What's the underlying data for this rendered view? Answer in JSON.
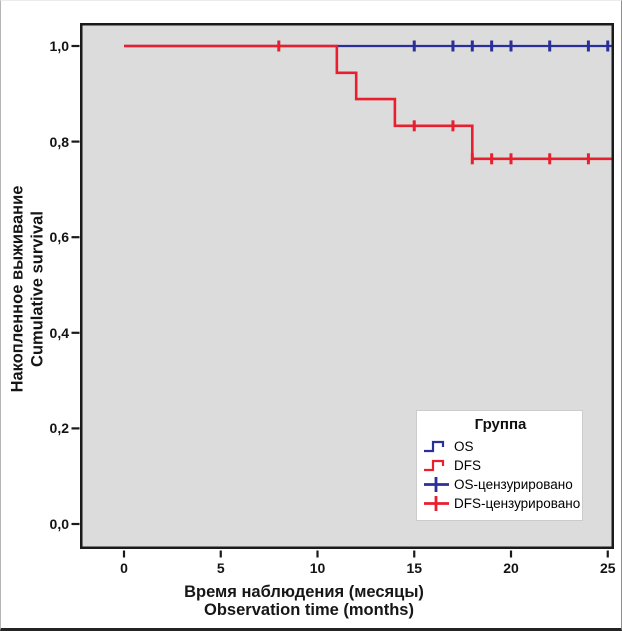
{
  "figure": {
    "y_axis_title_line1": "Накопленное выживание",
    "y_axis_title_line2": "Cumulative survival",
    "x_axis_title_line1": "Время наблюдения (месяцы)",
    "x_axis_title_line2": "Observation time (months)"
  },
  "legend": {
    "title": "Группа",
    "entries": [
      {
        "label": "OS",
        "symbol": "step",
        "color": "#2a2f99"
      },
      {
        "label": "DFS",
        "symbol": "step",
        "color": "#e71f2e"
      },
      {
        "label": "OS-цензурировано",
        "symbol": "plus",
        "color": "#2a2f99"
      },
      {
        "label": "DFS-цензурировано",
        "symbol": "plus",
        "color": "#e71f2e"
      }
    ]
  },
  "colors": {
    "plot_background": "#dcdcdc",
    "frame": "#1a1a1a",
    "os_blue": "#2a2f99",
    "dfs_red": "#e71f2e",
    "page_background": "#ffffff"
  },
  "chart_data": {
    "type": "line",
    "chart_kind": "kaplan_meier_step",
    "title": "",
    "xlabel_ru": "Время наблюдения (месяцы)",
    "xlabel_en": "Observation time (months)",
    "ylabel_ru": "Накопленное выживание",
    "ylabel_en": "Cumulative survival",
    "x_tick_values": [
      0,
      5,
      10,
      15,
      20,
      25
    ],
    "x_tick_labels": [
      "0",
      "5",
      "10",
      "15",
      "20",
      "25"
    ],
    "y_tick_values": [
      0.0,
      0.2,
      0.4,
      0.6,
      0.8,
      1.0
    ],
    "y_tick_labels": [
      "0,0",
      "0,2",
      "0,4",
      "0,6",
      "0,8",
      "1,0"
    ],
    "xlim": [
      -2.2,
      25.3
    ],
    "ylim": [
      -0.052,
      1.048
    ],
    "grid": false,
    "legend_position": "lower-right",
    "series": [
      {
        "name": "OS",
        "color": "#2a2f99",
        "line_width": 2.2,
        "step_points": [
          [
            0,
            1.0
          ]
        ],
        "end_t": 25.2,
        "censor_marks": [
          [
            15,
            1.0
          ],
          [
            17,
            1.0
          ],
          [
            18,
            1.0
          ],
          [
            19,
            1.0
          ],
          [
            20,
            1.0
          ],
          [
            22,
            1.0
          ],
          [
            24,
            1.0
          ],
          [
            25,
            1.0
          ]
        ]
      },
      {
        "name": "DFS",
        "color": "#e71f2e",
        "line_width": 2.6,
        "step_points": [
          [
            0,
            1.0
          ],
          [
            11,
            0.944
          ],
          [
            12,
            0.889
          ],
          [
            14,
            0.833
          ],
          [
            18,
            0.764
          ]
        ],
        "end_t": 25.2,
        "censor_marks": [
          [
            8,
            1.0
          ],
          [
            15,
            0.833
          ],
          [
            17,
            0.833
          ],
          [
            18,
            0.764
          ],
          [
            19,
            0.764
          ],
          [
            20,
            0.764
          ],
          [
            22,
            0.764
          ],
          [
            24,
            0.764
          ]
        ]
      }
    ]
  }
}
